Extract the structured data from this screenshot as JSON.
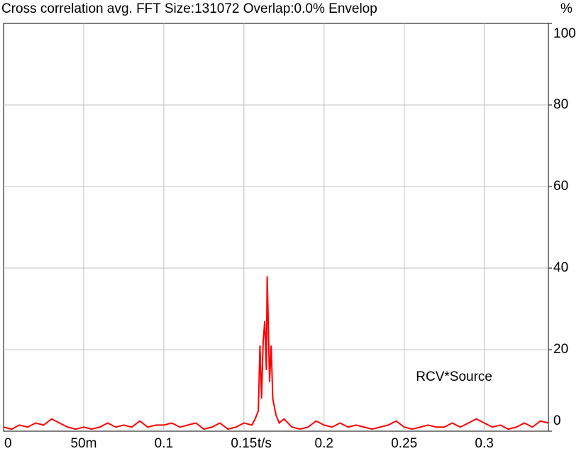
{
  "chart_data": {
    "type": "line",
    "title": "Cross correlation avg.  FFT Size:131072  Overlap:0.0%  Envelop",
    "x_unit": "t/s",
    "y_unit": "%",
    "annotation": "RCV*Source",
    "xlim": [
      0,
      0.34
    ],
    "ylim": [
      0,
      100
    ],
    "xticks": [
      0,
      {
        "value": 0.05,
        "label": "50m"
      },
      0.1,
      0.15,
      0.2,
      0.25,
      0.3
    ],
    "yticks": [
      0,
      20,
      40,
      60,
      80,
      100
    ],
    "grid": true,
    "series": [
      {
        "name": "RCV*Source",
        "color": "#ff0000",
        "x": [
          0,
          0.005,
          0.01,
          0.015,
          0.02,
          0.025,
          0.03,
          0.035,
          0.04,
          0.045,
          0.05,
          0.055,
          0.06,
          0.065,
          0.07,
          0.075,
          0.08,
          0.085,
          0.09,
          0.095,
          0.1,
          0.105,
          0.11,
          0.115,
          0.12,
          0.125,
          0.13,
          0.135,
          0.14,
          0.145,
          0.15,
          0.155,
          0.157,
          0.159,
          0.16,
          0.161,
          0.162,
          0.163,
          0.164,
          0.1645,
          0.165,
          0.166,
          0.167,
          0.168,
          0.17,
          0.172,
          0.175,
          0.18,
          0.185,
          0.19,
          0.195,
          0.2,
          0.205,
          0.21,
          0.215,
          0.22,
          0.225,
          0.23,
          0.235,
          0.24,
          0.245,
          0.25,
          0.255,
          0.26,
          0.265,
          0.27,
          0.275,
          0.28,
          0.285,
          0.29,
          0.295,
          0.3,
          0.305,
          0.31,
          0.315,
          0.32,
          0.325,
          0.33,
          0.335,
          0.34
        ],
        "values": [
          1,
          0.5,
          1.5,
          1,
          2,
          1.5,
          3,
          2,
          1,
          0.5,
          1,
          0.5,
          1,
          2,
          1,
          1.5,
          1,
          2.5,
          1,
          1.5,
          1.5,
          2,
          1,
          1.5,
          2,
          0.5,
          1,
          2,
          0.5,
          1,
          2,
          1.5,
          3,
          5,
          21,
          8,
          22,
          27,
          15,
          38,
          30,
          12,
          21,
          8,
          4,
          2,
          3,
          1,
          0.5,
          1,
          2.5,
          1.5,
          1,
          2,
          1,
          1.5,
          1,
          0.5,
          1,
          1.5,
          2.5,
          1,
          0.5,
          1,
          1.5,
          1,
          1,
          2,
          1,
          2,
          3,
          2,
          1,
          1.5,
          0.5,
          1,
          2,
          1,
          2.5,
          2
        ]
      }
    ]
  }
}
